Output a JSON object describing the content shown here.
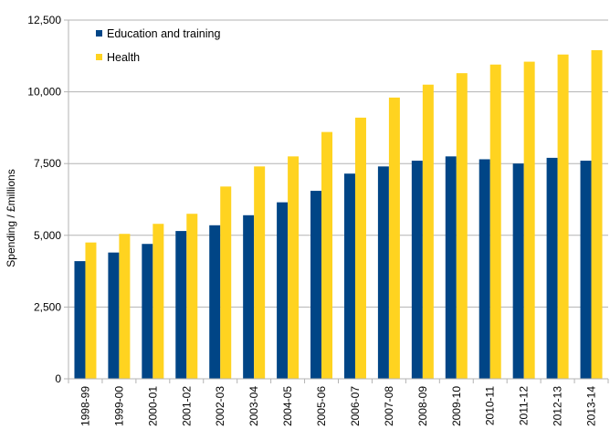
{
  "chart_data": {
    "type": "bar",
    "title": "",
    "xlabel": "",
    "ylabel": "Spending / £millions",
    "ylim": [
      0,
      12500
    ],
    "yticks": [
      0,
      2500,
      5000,
      7500,
      10000,
      12500
    ],
    "ytick_labels": [
      "0",
      "2,500",
      "5,000",
      "7,500",
      "10,000",
      "12,500"
    ],
    "grid": "horizontal",
    "legend_position": "top-left",
    "categories": [
      "1998-99",
      "1999-00",
      "2000-01",
      "2001-02",
      "2002-03",
      "2003-04",
      "2004-05",
      "2005-06",
      "2006-07",
      "2007-08",
      "2008-09",
      "2009-10",
      "2010-11",
      "2011-12",
      "2012-13",
      "2013-14"
    ],
    "series": [
      {
        "name": "Education and training",
        "color": "#004586",
        "values": [
          4100,
          4400,
          4700,
          5150,
          5350,
          5700,
          6150,
          6550,
          7150,
          7400,
          7600,
          7750,
          7650,
          7500,
          7700,
          7600
        ]
      },
      {
        "name": "Health",
        "color": "#ffd320",
        "values": [
          4750,
          5050,
          5400,
          5750,
          6700,
          7400,
          7750,
          8600,
          9100,
          9800,
          10250,
          10650,
          10950,
          11050,
          11300,
          11450
        ]
      }
    ]
  }
}
